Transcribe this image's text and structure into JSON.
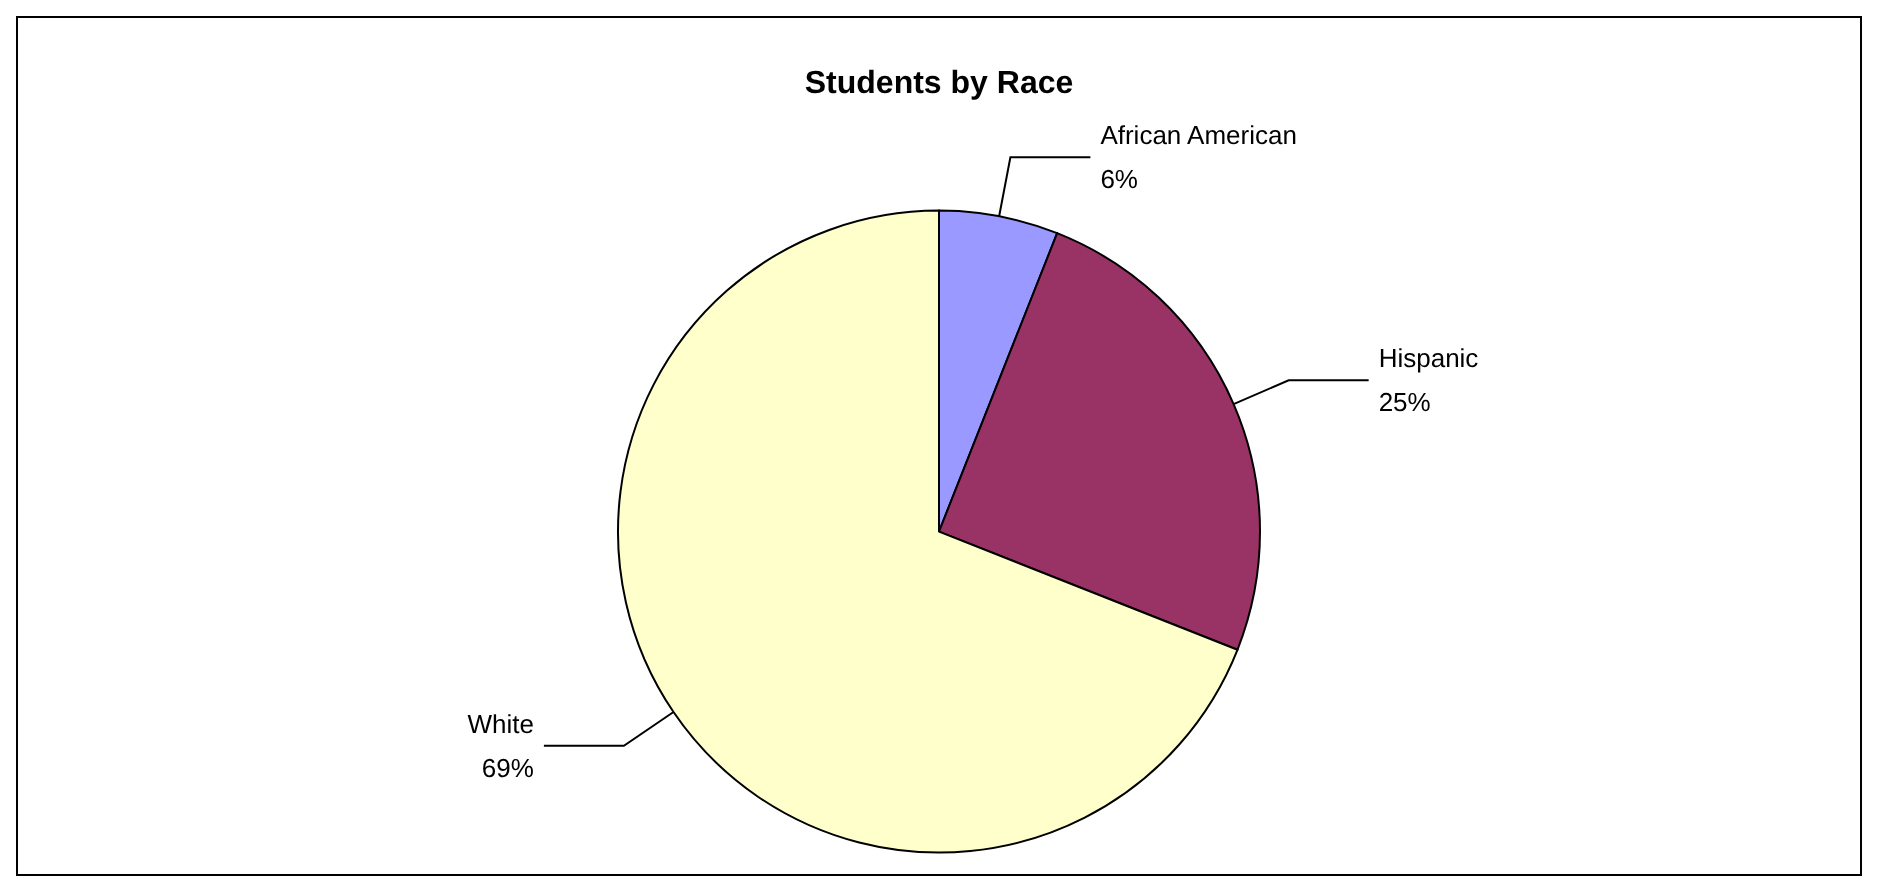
{
  "chart_data": {
    "type": "pie",
    "title": "Students by Race",
    "categories": [
      "African American",
      "Hispanic",
      "White"
    ],
    "values": [
      6,
      25,
      69
    ],
    "value_labels": [
      "6%",
      "25%",
      "69%"
    ],
    "colors": [
      "#9999ff",
      "#993366",
      "#ffffcc"
    ],
    "legend": false
  }
}
